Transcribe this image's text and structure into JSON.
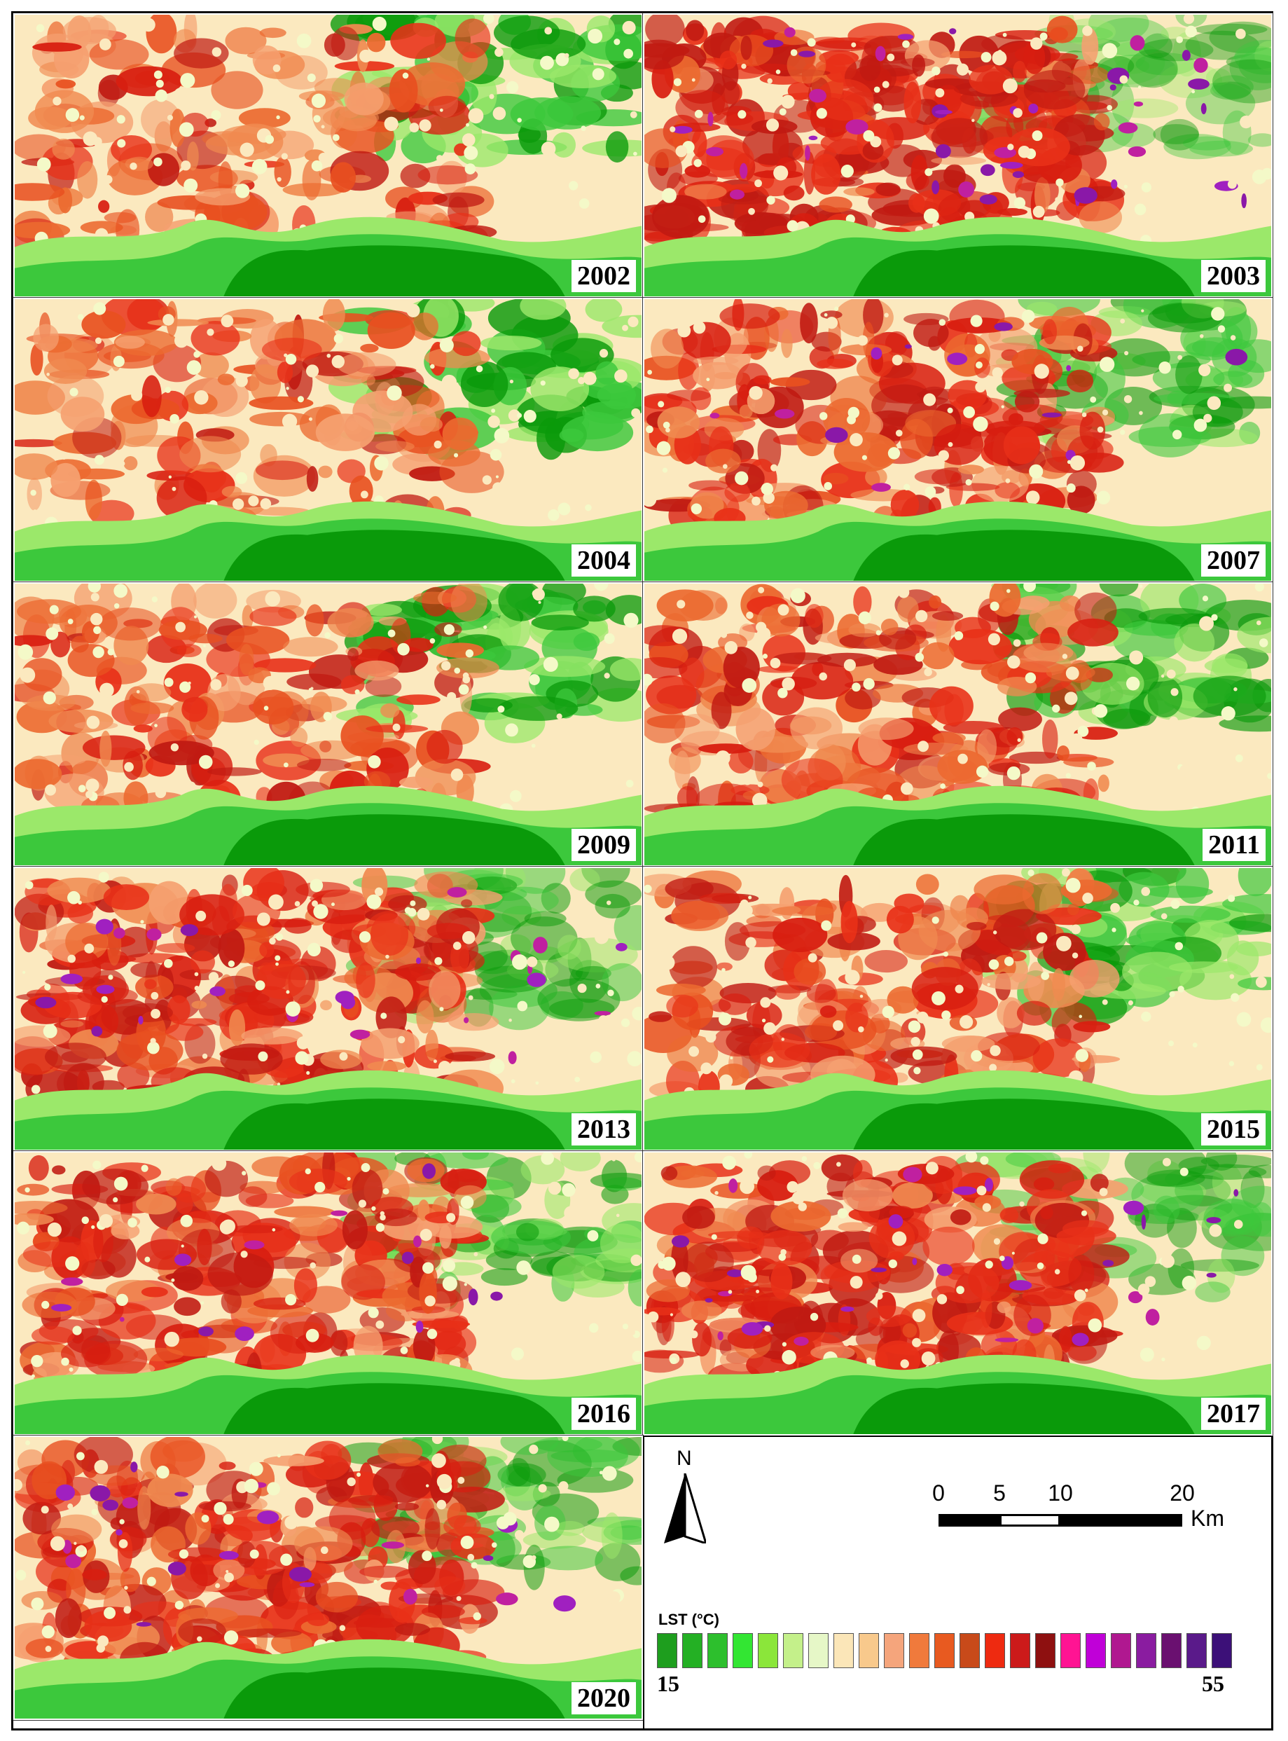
{
  "maps": [
    {
      "year": "2002",
      "heat": 0.3
    },
    {
      "year": "2003",
      "heat": 0.85
    },
    {
      "year": "2004",
      "heat": 0.25
    },
    {
      "year": "2007",
      "heat": 0.6
    },
    {
      "year": "2009",
      "heat": 0.35
    },
    {
      "year": "2011",
      "heat": 0.5
    },
    {
      "year": "2013",
      "heat": 0.7
    },
    {
      "year": "2015",
      "heat": 0.45
    },
    {
      "year": "2016",
      "heat": 0.62
    },
    {
      "year": "2017",
      "heat": 0.75
    },
    {
      "year": "2020",
      "heat": 0.68
    }
  ],
  "north_arrow": {
    "label": "N"
  },
  "scale_bar": {
    "ticks": [
      "0",
      "5",
      "10",
      "20"
    ],
    "unit": "Km"
  },
  "legend": {
    "title": "LST (°C)",
    "min": "15",
    "max": "55",
    "colors": [
      "#1e9e1e",
      "#24b024",
      "#2dbf2d",
      "#33e633",
      "#8be63a",
      "#c4f08a",
      "#e6f7c7",
      "#fbe6b8",
      "#f8c98c",
      "#f5a57c",
      "#f07a3c",
      "#e85a20",
      "#c84a1a",
      "#ee2a10",
      "#cc1a1a",
      "#8e1010",
      "#ff1493",
      "#c000d8",
      "#b01890",
      "#8a1ca0",
      "#6a1070",
      "#5a1a8a",
      "#3c1078"
    ]
  }
}
